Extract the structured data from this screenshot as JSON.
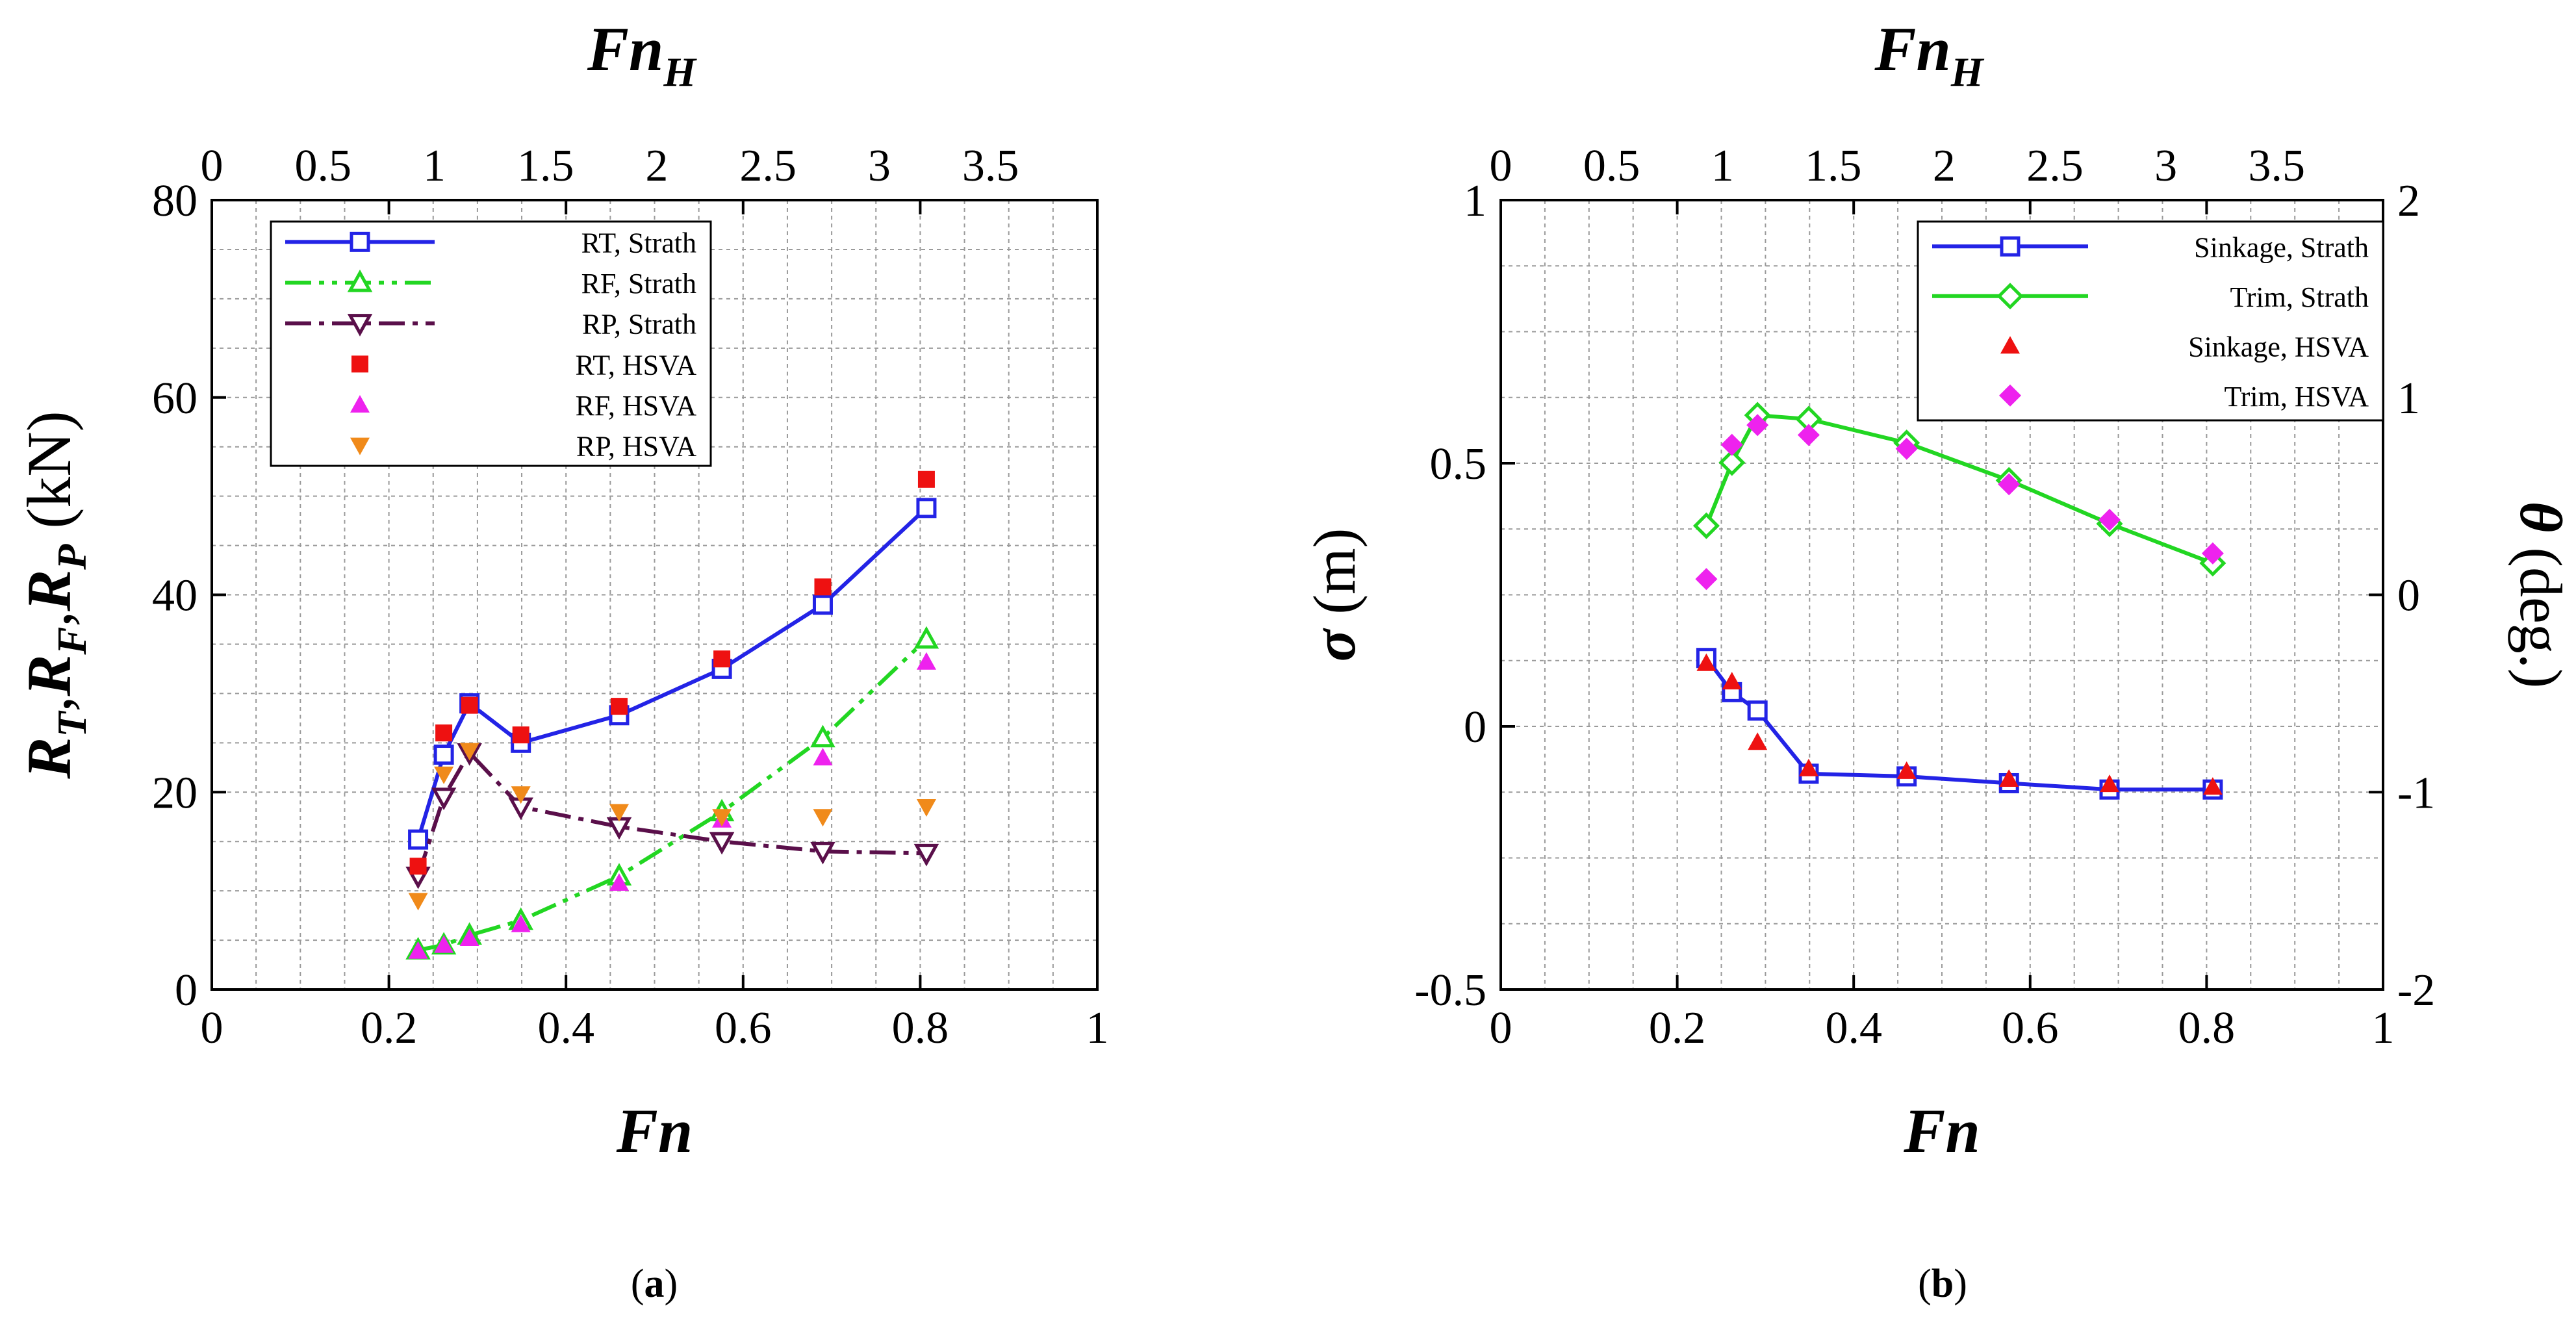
{
  "chart_data": [
    {
      "id": "a",
      "type": "line",
      "caption": "(a)",
      "xlabel": "Fn",
      "top_xlabel": "Fn_H",
      "ylabel": "R_T,R_F,R_P (kN)",
      "xlim": [
        0,
        1
      ],
      "ylim": [
        0,
        80
      ],
      "xticks": [
        "0",
        "0.2",
        "0.4",
        "0.6",
        "0.8",
        "1"
      ],
      "yticks": [
        "0",
        "20",
        "40",
        "60",
        "80"
      ],
      "top_xlim": [
        0,
        3.98
      ],
      "top_xticks": [
        "0",
        "0.5",
        "1",
        "1.5",
        "2",
        "2.5",
        "3",
        "3.5"
      ],
      "legend_position": "top-left",
      "series": [
        {
          "name": "RT, Strath",
          "style": "line-square",
          "color": "#2323e6",
          "x": [
            0.233,
            0.262,
            0.291,
            0.349,
            0.46,
            0.576,
            0.69,
            0.807
          ],
          "y": [
            15.2,
            23.8,
            29.0,
            25.0,
            27.8,
            32.5,
            39.0,
            48.8
          ]
        },
        {
          "name": "RF, Strath",
          "style": "dashdotdot-triangle",
          "color": "#22d622",
          "x": [
            0.233,
            0.262,
            0.291,
            0.349,
            0.46,
            0.576,
            0.69,
            0.807
          ],
          "y": [
            4.0,
            4.5,
            5.5,
            7.0,
            11.5,
            18.0,
            25.5,
            35.5
          ]
        },
        {
          "name": "RP, Strath",
          "style": "dashdot-invtriangle",
          "color": "#5a0f4a",
          "x": [
            0.233,
            0.262,
            0.291,
            0.349,
            0.46,
            0.576,
            0.69,
            0.807
          ],
          "y": [
            11.5,
            19.5,
            24.0,
            18.5,
            16.5,
            15.0,
            14.0,
            13.8
          ]
        },
        {
          "name": "RT, HSVA",
          "style": "marker-square",
          "color": "#ee1111",
          "x": [
            0.233,
            0.262,
            0.291,
            0.349,
            0.46,
            0.576,
            0.69,
            0.807
          ],
          "y": [
            12.5,
            26.0,
            28.8,
            25.8,
            28.7,
            33.5,
            40.8,
            51.7
          ]
        },
        {
          "name": "RF, HSVA",
          "style": "marker-triangle",
          "color": "#ee22ee",
          "x": [
            0.233,
            0.262,
            0.291,
            0.349,
            0.46,
            0.576,
            0.69,
            0.807
          ],
          "y": [
            3.9,
            4.5,
            5.2,
            6.6,
            10.8,
            17.2,
            23.5,
            33.2
          ]
        },
        {
          "name": "RP, HSVA",
          "style": "marker-invtriangle",
          "color": "#f08a1a",
          "x": [
            0.233,
            0.262,
            0.291,
            0.349,
            0.46,
            0.576,
            0.69,
            0.807
          ],
          "y": [
            9.0,
            21.8,
            24.2,
            19.8,
            18.0,
            17.5,
            17.5,
            18.5
          ]
        }
      ]
    },
    {
      "id": "b",
      "type": "line",
      "caption": "(b)",
      "xlabel": "Fn",
      "top_xlabel": "Fn_H",
      "ylabel": "σ (m)",
      "y2label": "θ (deg.)",
      "xlim": [
        0,
        1
      ],
      "ylim": [
        -0.5,
        1
      ],
      "y2lim": [
        -2,
        2
      ],
      "xticks": [
        "0",
        "0.2",
        "0.4",
        "0.6",
        "0.8",
        "1"
      ],
      "yticks": [
        "-0.5",
        "0",
        "0.5",
        "1"
      ],
      "y2ticks": [
        "-2",
        "-1",
        "0",
        "1",
        "2"
      ],
      "top_xlim": [
        0,
        3.98
      ],
      "top_xticks": [
        "0",
        "0.5",
        "1",
        "1.5",
        "2",
        "2.5",
        "3",
        "3.5"
      ],
      "legend_position": "top-right",
      "series": [
        {
          "name": "Sinkage, Strath",
          "style": "line-square",
          "color": "#2323e6",
          "axis": "left",
          "x": [
            0.233,
            0.262,
            0.291,
            0.349,
            0.46,
            0.576,
            0.69,
            0.807
          ],
          "y": [
            0.13,
            0.065,
            0.03,
            -0.09,
            -0.095,
            -0.108,
            -0.12,
            -0.12
          ]
        },
        {
          "name": "Trim, Strath",
          "style": "line-diamond",
          "color": "#22d622",
          "axis": "right",
          "x": [
            0.233,
            0.262,
            0.291,
            0.349,
            0.46,
            0.576,
            0.69,
            0.807
          ],
          "y": [
            0.35,
            0.67,
            0.91,
            0.89,
            0.77,
            0.58,
            0.36,
            0.16
          ]
        },
        {
          "name": "Sinkage, HSVA",
          "style": "marker-triangle",
          "color": "#ee1111",
          "axis": "left",
          "x": [
            0.233,
            0.262,
            0.291,
            0.349,
            0.46,
            0.576,
            0.69,
            0.807
          ],
          "y": [
            0.12,
            0.085,
            -0.03,
            -0.08,
            -0.085,
            -0.1,
            -0.11,
            -0.115
          ]
        },
        {
          "name": "Trim, HSVA",
          "style": "marker-diamond",
          "color": "#ee22ee",
          "axis": "right",
          "x": [
            0.233,
            0.262,
            0.291,
            0.349,
            0.46,
            0.576,
            0.69,
            0.807
          ],
          "y": [
            0.08,
            0.76,
            0.86,
            0.81,
            0.74,
            0.56,
            0.38,
            0.21
          ]
        }
      ]
    }
  ]
}
